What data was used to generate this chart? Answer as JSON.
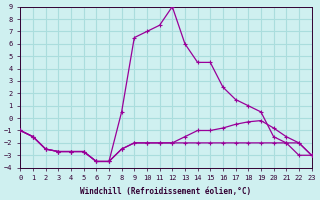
{
  "xlabel": "Windchill (Refroidissement éolien,°C)",
  "background_color": "#cff0f0",
  "grid_color": "#aadddd",
  "line_color": "#990099",
  "xlim": [
    0,
    23
  ],
  "ylim": [
    -4,
    9
  ],
  "xticks": [
    0,
    1,
    2,
    3,
    4,
    5,
    6,
    7,
    8,
    9,
    10,
    11,
    12,
    13,
    14,
    15,
    16,
    17,
    18,
    19,
    20,
    21,
    22,
    23
  ],
  "yticks": [
    -4,
    -3,
    -2,
    -1,
    0,
    1,
    2,
    3,
    4,
    5,
    6,
    7,
    8,
    9
  ],
  "line1_x": [
    0,
    1,
    2,
    3,
    4,
    5,
    6,
    7,
    8,
    9,
    10,
    11,
    12,
    13,
    14,
    15,
    16,
    17,
    18,
    19,
    20,
    21,
    22,
    23
  ],
  "line1_y": [
    -1,
    -1.5,
    -2.5,
    -2.7,
    -2.7,
    -2.7,
    -3.5,
    -3.5,
    -2.5,
    -2,
    -2,
    -2,
    -2,
    -2,
    -2,
    -2,
    -2,
    -2,
    -2,
    -2,
    -2,
    -2,
    -2,
    -3
  ],
  "line2_x": [
    0,
    1,
    2,
    3,
    4,
    5,
    6,
    7,
    8,
    9,
    10,
    11,
    12,
    13,
    14,
    15,
    16,
    17,
    18,
    19,
    20,
    21,
    22,
    23
  ],
  "line2_y": [
    -1,
    -1.5,
    -2.5,
    -2.7,
    -2.7,
    -2.7,
    -3.5,
    -3.5,
    0.5,
    6.5,
    7,
    7.5,
    9,
    6,
    4.5,
    4.5,
    2.5,
    1.5,
    1,
    0.5,
    -1.5,
    -2,
    -3,
    -3
  ],
  "line3_x": [
    0,
    1,
    2,
    3,
    4,
    5,
    6,
    7,
    8,
    9,
    10,
    11,
    12,
    13,
    14,
    15,
    16,
    17,
    18,
    19,
    20,
    21,
    22,
    23
  ],
  "line3_y": [
    -1,
    -1.5,
    -2.5,
    -2.7,
    -2.7,
    -2.7,
    -3.5,
    -3.5,
    -2.5,
    -2,
    -2,
    -2,
    -2,
    -1.5,
    -1,
    -1,
    -0.8,
    -0.5,
    -0.3,
    -0.2,
    -0.8,
    -1.5,
    -2,
    -3
  ]
}
